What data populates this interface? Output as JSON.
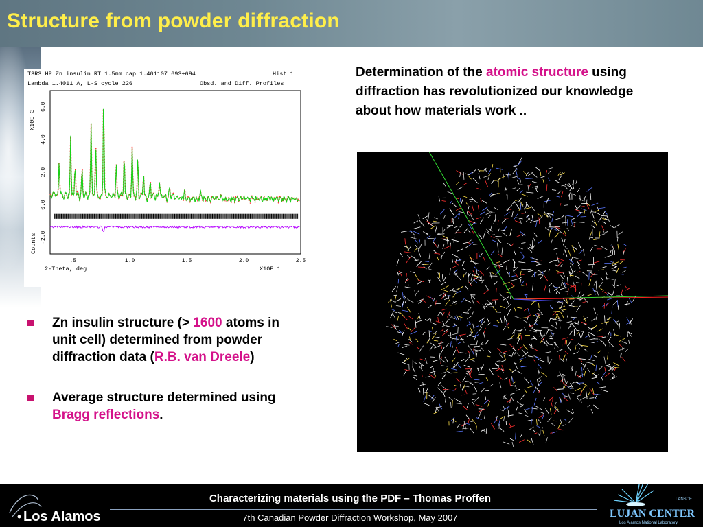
{
  "slide": {
    "title": "Structure from powder diffraction"
  },
  "intro": {
    "part1": "Determination of the ",
    "highlight": "atomic structure",
    "part2": " using diffraction has revolutionized our knowledge about how materials work .."
  },
  "pattern": {
    "header_line1": "T3R3 HP Zn insulin RT 1.5mm cap 1.401107 693+694",
    "header_hist": "Hist   1",
    "header_line2": "Lambda 1.4011 A, L-S cycle  226",
    "header_obsd": "Obsd. and Diff. Profiles",
    "y_scale_label": "X10E  3",
    "y_ticks": [
      "6.0",
      "4.0",
      "2.0",
      "0.0",
      "-2.0"
    ],
    "y_label": "Counts",
    "x_ticks": [
      ".5",
      "1.0",
      "1.5",
      "2.0",
      "2.5"
    ],
    "x_label": "2-Theta, deg",
    "x_scale_label": "X10E  1",
    "colors": {
      "observed": "#ff2020",
      "calculated": "#19d219",
      "difference": "#b400ff",
      "reflections": "#000000"
    }
  },
  "bullets": [
    {
      "pre": "Zn insulin structure (> ",
      "highlight": "1600",
      "post": " atoms in unit cell) determined from powder diffraction data (",
      "highlight2": "R.B. van Dreele",
      "post2": ")"
    },
    {
      "pre": "Average structure determined using ",
      "highlight": "Bragg reflections",
      "post": "."
    }
  ],
  "footer": {
    "title": "Characterizing materials using the PDF – Thomas Proffen",
    "subtitle": "7th Canadian Powder Diffraction Workshop, May 2007",
    "logo_left": "Los Alamos",
    "logo_right": "LUJAN CENTER",
    "logo_right_top": "LANSCE",
    "logo_right_sub": "Los Alamos National Laboratory"
  },
  "accent": {
    "title_color": "#ffee4a",
    "highlight_color": "#d4128a"
  }
}
